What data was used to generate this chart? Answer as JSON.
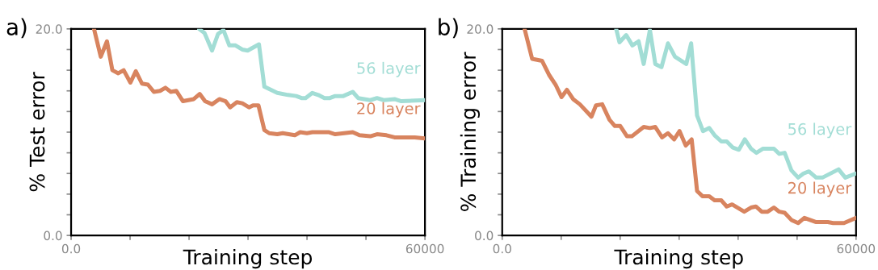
{
  "chart_data": [
    {
      "type": "line",
      "title": "a)",
      "xlabel": "Training step",
      "ylabel": "% Test error",
      "xlim": [
        0,
        60000
      ],
      "ylim": [
        0,
        20
      ],
      "xticks": [
        {
          "value": 0,
          "label": "0.0"
        },
        {
          "value": 10000,
          "label": null
        },
        {
          "value": 20000,
          "label": null
        },
        {
          "value": 30000,
          "label": null
        },
        {
          "value": 40000,
          "label": null
        },
        {
          "value": 50000,
          "label": null
        },
        60000
      ],
      "yticks": [
        {
          "value": 0,
          "label": "0.0"
        },
        {
          "value": 2,
          "label": null
        },
        {
          "value": 4,
          "label": null
        },
        {
          "value": 6,
          "label": null
        },
        {
          "value": 8,
          "label": null
        },
        {
          "value": 10,
          "label": null
        },
        {
          "value": 12,
          "label": null
        },
        {
          "value": 14,
          "label": null
        },
        {
          "value": 16,
          "label": null
        },
        {
          "value": 18,
          "label": null
        },
        {
          "value": 20,
          "label": "20.0"
        }
      ],
      "grid": false,
      "legend": false,
      "marker": "none",
      "line_style": "solid",
      "series": [
        {
          "name": "56 layer",
          "color": "#a2ddd5",
          "x": [
            21708,
            22622,
            23902,
            24906,
            25820,
            26826,
            27877,
            29020,
            29934,
            31853,
            32768,
            34960,
            36789,
            38160,
            39074,
            39759,
            40901,
            41907,
            42958,
            43871,
            44785,
            46156,
            47756,
            48670,
            50727,
            51869,
            53012,
            54840,
            55982,
            60000
          ],
          "values": [
            20.0,
            19.6,
            17.9,
            19.5,
            19.9,
            18.4,
            18.4,
            18.0,
            17.9,
            18.5,
            14.4,
            13.8,
            13.6,
            13.5,
            13.3,
            13.3,
            13.8,
            13.6,
            13.3,
            13.3,
            13.5,
            13.5,
            13.9,
            13.3,
            13.1,
            13.3,
            13.1,
            13.2,
            13.0,
            13.1
          ]
        },
        {
          "name": "20 layer",
          "color": "#d8845f",
          "x": [
            3885,
            5027,
            6078,
            6992,
            7997,
            8911,
            10054,
            10968,
            12019,
            13024,
            14030,
            15081,
            15995,
            16909,
            17823,
            18966,
            20794,
            21800,
            22713,
            23902,
            25135,
            26187,
            26964,
            28106,
            29020,
            30163,
            30848,
            31762,
            32768,
            33590,
            34960,
            35874,
            37931,
            38845,
            39987,
            40901,
            43642,
            44785,
            47756,
            48898,
            50727,
            51869,
            53469,
            54840,
            58267,
            60000
          ],
          "values": [
            20.0,
            17.3,
            18.8,
            16.0,
            15.7,
            16.0,
            14.8,
            15.9,
            14.7,
            14.6,
            13.9,
            14.0,
            14.3,
            13.9,
            14.0,
            13.0,
            13.2,
            13.7,
            13.0,
            12.7,
            13.2,
            13.0,
            12.4,
            12.9,
            12.8,
            12.4,
            12.6,
            12.6,
            10.2,
            9.9,
            9.8,
            9.9,
            9.7,
            10.0,
            9.9,
            10.0,
            10.0,
            9.8,
            10.0,
            9.7,
            9.6,
            9.8,
            9.7,
            9.5,
            9.5,
            9.4
          ]
        }
      ]
    },
    {
      "type": "line",
      "title": "b)",
      "xlabel": "Training step",
      "ylabel": "% Training error",
      "xlim": [
        0,
        60000
      ],
      "ylim": [
        0,
        20
      ],
      "xticks": [
        {
          "value": 0,
          "label": "0.0"
        },
        {
          "value": 10000,
          "label": null
        },
        {
          "value": 20000,
          "label": null
        },
        {
          "value": 30000,
          "label": null
        },
        {
          "value": 40000,
          "label": null
        },
        {
          "value": 50000,
          "label": null
        },
        60000
      ],
      "yticks": [
        {
          "value": 0,
          "label": "0.0"
        },
        {
          "value": 2,
          "label": null
        },
        {
          "value": 4,
          "label": null
        },
        {
          "value": 6,
          "label": null
        },
        {
          "value": 8,
          "label": null
        },
        {
          "value": 10,
          "label": null
        },
        {
          "value": 12,
          "label": null
        },
        {
          "value": 14,
          "label": null
        },
        {
          "value": 16,
          "label": null
        },
        {
          "value": 18,
          "label": null
        },
        {
          "value": 20,
          "label": "20.0"
        }
      ],
      "grid": false,
      "legend": false,
      "marker": "none",
      "line_style": "solid",
      "series": [
        {
          "name": "56 layer",
          "color": "#a2ddd5",
          "x": [
            19331,
            19880,
            21023,
            22074,
            23125,
            23993,
            25044,
            25958,
            27009,
            28106,
            29294,
            31213,
            32036,
            33042,
            34047,
            35099,
            36013,
            37156,
            38070,
            39122,
            40128,
            41133,
            42183,
            43097,
            44239,
            46068,
            46982,
            47896,
            49038,
            50181,
            51095,
            52009,
            53242,
            54292,
            57036,
            58177,
            60000
          ],
          "values": [
            20.0,
            18.7,
            19.4,
            18.4,
            18.8,
            16.6,
            19.9,
            16.6,
            16.3,
            18.6,
            17.3,
            16.6,
            18.6,
            11.6,
            10.1,
            10.4,
            9.7,
            9.1,
            9.1,
            8.5,
            8.3,
            9.3,
            8.4,
            8.0,
            8.4,
            8.4,
            7.9,
            8.0,
            6.3,
            5.6,
            6.0,
            6.2,
            5.6,
            5.6,
            6.4,
            5.6,
            6.0
          ]
        },
        {
          "name": "20 layer",
          "color": "#d8845f",
          "x": [
            3793,
            5073,
            6764,
            7997,
            9048,
            10054,
            10968,
            12019,
            13162,
            15127,
            15904,
            16955,
            18189,
            19103,
            20017,
            21159,
            21982,
            23993,
            25044,
            25958,
            27100,
            28106,
            29157,
            30071,
            31122,
            32128,
            33042,
            33956,
            35099,
            36013,
            37156,
            38070,
            38984,
            41040,
            42183,
            43006,
            44011,
            45016,
            46068,
            46982,
            47896,
            49038,
            50181,
            51232,
            53151,
            55208,
            56122,
            57950,
            60000
          ],
          "values": [
            20.0,
            17.1,
            16.9,
            15.5,
            14.6,
            13.4,
            14.1,
            13.2,
            12.7,
            11.5,
            12.6,
            12.7,
            11.2,
            10.6,
            10.6,
            9.6,
            9.6,
            10.5,
            10.4,
            10.5,
            9.5,
            9.9,
            9.3,
            10.1,
            8.7,
            9.3,
            4.3,
            3.8,
            3.8,
            3.4,
            3.4,
            2.8,
            3.0,
            2.3,
            2.7,
            2.8,
            2.3,
            2.3,
            2.7,
            2.3,
            2.2,
            1.5,
            1.2,
            1.7,
            1.3,
            1.3,
            1.2,
            1.2,
            1.7
          ]
        }
      ]
    }
  ]
}
